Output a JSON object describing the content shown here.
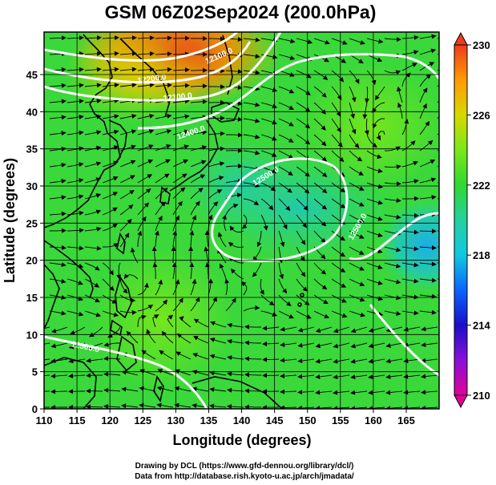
{
  "title": "GSM 06Z02Sep2024 (200.0hPa)",
  "axes": {
    "x": {
      "label": "Longitude (degrees)",
      "range": [
        110,
        170
      ],
      "ticks": [
        "110",
        "115",
        "120",
        "125",
        "130",
        "135",
        "140",
        "145",
        "150",
        "155",
        "160",
        "165"
      ]
    },
    "y": {
      "label": "Latitude  (degrees)",
      "range": [
        0,
        50
      ],
      "ticks": [
        "0",
        "5",
        "10",
        "15",
        "20",
        "25",
        "30",
        "35",
        "40",
        "45"
      ]
    }
  },
  "colorbar": {
    "labels": [
      "230",
      "226",
      "222",
      "218",
      "214",
      "210"
    ],
    "range": [
      210,
      230
    ],
    "colors": [
      "#e0009a",
      "#8a10d8",
      "#1810c8",
      "#0a64ff",
      "#10c8e0",
      "#24d0a0",
      "#30d830",
      "#7ae81a",
      "#d8d800",
      "#ff9b00",
      "#ee3c1c"
    ]
  },
  "contours": {
    "labels": [
      "12100.0",
      "12200.0",
      "12300.0",
      "12400.0",
      "12500.0",
      "12500.0",
      "12500.0"
    ],
    "color": "#ffffff"
  },
  "credits": {
    "line1": "Drawing by DCL (https://www.gfd-dennou.org/library/dcl/)",
    "line2": "Data from http://database.rish.kyoto-u.ac.jp/arch/jmadata/"
  },
  "chart_data": {
    "type": "heatmap",
    "variable": "200.0hPa",
    "units_colorbar": "",
    "field_regions": [
      {
        "lon": 130,
        "lat": 48,
        "value": 228.5
      },
      {
        "lon": 124,
        "lat": 45,
        "value": 226
      },
      {
        "lon": 140,
        "lat": 30,
        "value": 221
      },
      {
        "lon": 149,
        "lat": 27,
        "value": 220.5
      },
      {
        "lon": 168,
        "lat": 22,
        "value": 218.5
      },
      {
        "lon": 160,
        "lat": 38,
        "value": 222.5
      },
      {
        "lon": 128,
        "lat": 12,
        "value": 223
      }
    ],
    "overlay": "streamlines"
  }
}
